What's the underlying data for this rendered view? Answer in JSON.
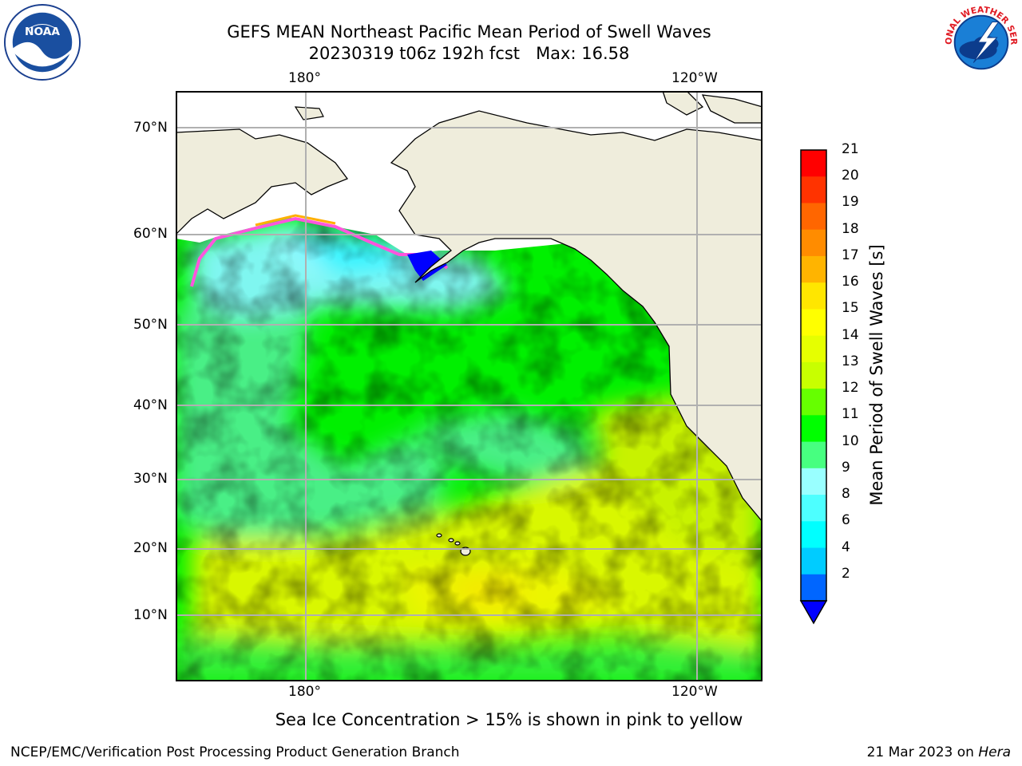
{
  "header": {
    "title_line1": "GEFS MEAN Northeast Pacific Mean Period of Swell Waves",
    "title_line2": "20230319 t06z 192h fcst   Max: 16.58"
  },
  "logos": {
    "left": "noaa-logo",
    "left_text": "NOAA",
    "right": "national-weather-service-logo",
    "right_text": "NATIONAL WEATHER SERVICE"
  },
  "map": {
    "lon_labels_top": [
      "180°",
      "120°W"
    ],
    "lon_labels_bottom": [
      "180°",
      "120°W"
    ],
    "lat_labels": [
      "70°N",
      "60°N",
      "50°N",
      "40°N",
      "30°N",
      "20°N",
      "10°N"
    ],
    "colors": {
      "land": "#efeddc",
      "ice_area": "#ffffff",
      "grid": "#b0b0b0"
    }
  },
  "colorbar": {
    "title": "Mean Period of Swell Waves [s]",
    "tick_labels": [
      "21",
      "20",
      "19",
      "18",
      "17",
      "16",
      "15",
      "14",
      "13",
      "12",
      "11",
      "10",
      "9",
      "8",
      "6",
      "4",
      "2"
    ],
    "colors_top_to_bottom": [
      "#ff0000",
      "#ff3300",
      "#ff6600",
      "#ff8c00",
      "#ffb400",
      "#ffe600",
      "#ffff00",
      "#e6ff00",
      "#c8ff00",
      "#66ff00",
      "#00ff00",
      "#47ff80",
      "#99ffff",
      "#4dffff",
      "#00ffff",
      "#00ccff",
      "#0066ff"
    ],
    "extend_color": "#0000ff"
  },
  "note": "Sea Ice Concentration > 15% is shown in pink to yellow",
  "footer": {
    "left": "NCEP/EMC/Verification Post Processing Product Generation Branch",
    "right_prefix": "21 Mar 2023 on ",
    "right_host": "Hera"
  }
}
